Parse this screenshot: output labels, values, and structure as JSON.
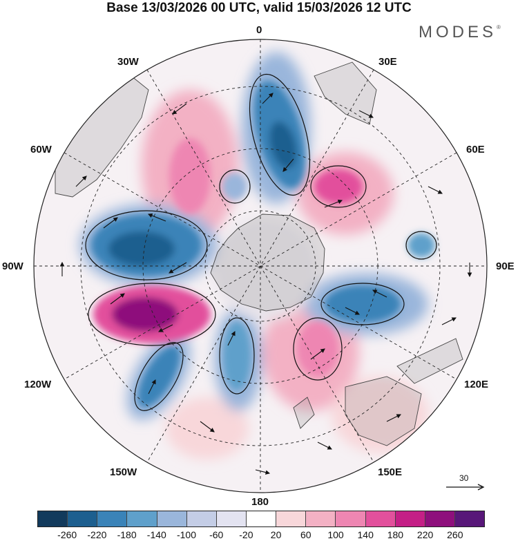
{
  "title": "Base 13/03/2026 00 UTC, valid 15/03/2026 12 UTC",
  "brand": {
    "name": "MODES",
    "mark": "®"
  },
  "longitude_labels": {
    "lon_0": "0",
    "lon_30e": "30E",
    "lon_60e": "60E",
    "lon_90e": "90E",
    "lon_120e": "120E",
    "lon_150e": "150E",
    "lon_180": "180",
    "lon_150w": "150W",
    "lon_120w": "120W",
    "lon_90w": "90W",
    "lon_60w": "60W",
    "lon_30w": "30W"
  },
  "reference_vector": {
    "label": "30"
  },
  "colorbar": {
    "colors": [
      "#123a5c",
      "#1d5f8f",
      "#3a83b8",
      "#5fa0cb",
      "#9ab6db",
      "#c4cde6",
      "#e3e3f1",
      "#ffffff",
      "#f8d7da",
      "#f3b1c4",
      "#ee86b2",
      "#e2509c",
      "#c41f86",
      "#8e0f7c",
      "#581779"
    ],
    "tick_labels": [
      "-260",
      "-220",
      "-180",
      "-140",
      "-100",
      "-60",
      "-20",
      "20",
      "60",
      "100",
      "140",
      "180",
      "220",
      "260"
    ]
  },
  "anomaly_features": [
    {
      "name": "blue-90w",
      "sign": "negative"
    },
    {
      "name": "magenta-110w",
      "sign": "positive"
    },
    {
      "name": "blue-20e",
      "sign": "negative"
    },
    {
      "name": "blue-100e",
      "sign": "negative"
    },
    {
      "name": "pink-140e",
      "sign": "positive"
    },
    {
      "name": "blue-135w",
      "sign": "negative"
    },
    {
      "name": "blue-160w",
      "sign": "negative"
    }
  ]
}
